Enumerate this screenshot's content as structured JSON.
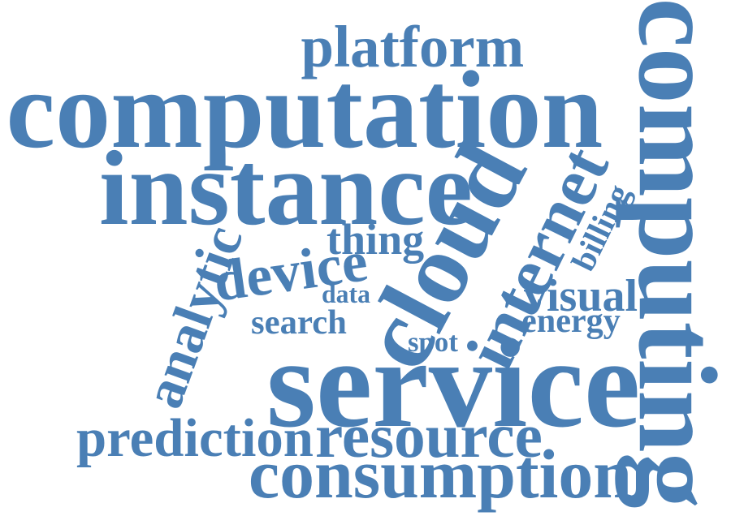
{
  "color": "#4a7fb5",
  "words": [
    {
      "name": "word-platform",
      "text": "platform"
    },
    {
      "name": "word-computation",
      "text": "computation"
    },
    {
      "name": "word-instance",
      "text": "instance"
    },
    {
      "name": "word-cloud",
      "text": "cloud"
    },
    {
      "name": "word-internet",
      "text": "internet"
    },
    {
      "name": "word-billing",
      "text": "billing"
    },
    {
      "name": "word-computing",
      "text": "computing"
    },
    {
      "name": "word-thing",
      "text": "thing"
    },
    {
      "name": "word-device",
      "text": "device"
    },
    {
      "name": "word-analytic",
      "text": "analytic"
    },
    {
      "name": "word-data",
      "text": "data"
    },
    {
      "name": "word-search",
      "text": "search"
    },
    {
      "name": "word-spot",
      "text": "spot"
    },
    {
      "name": "word-visual",
      "text": "visual"
    },
    {
      "name": "word-energy",
      "text": "energy"
    },
    {
      "name": "word-service",
      "text": "service"
    },
    {
      "name": "word-prediction",
      "text": "prediction"
    },
    {
      "name": "word-resource",
      "text": "resource"
    },
    {
      "name": "word-consumption",
      "text": "consumption"
    }
  ]
}
